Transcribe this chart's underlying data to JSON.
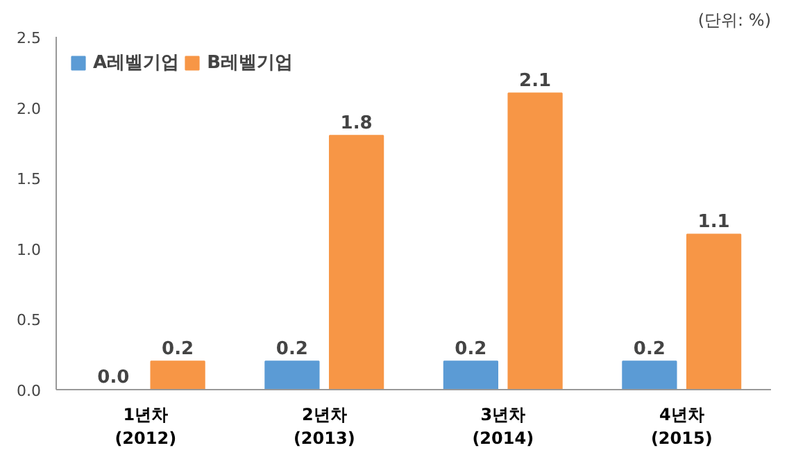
{
  "chart_data": {
    "type": "bar",
    "annotations": [
      "(단위: %)"
    ],
    "categories": [
      "1년차\n(2012)",
      "2년차\n(2013)",
      "3년차\n(2014)",
      "4년차\n(2015)"
    ],
    "series": [
      {
        "name": "A레벨기업",
        "color": "#5b9bd5",
        "values": [
          0.0,
          0.2,
          0.2,
          0.2
        ],
        "value_labels": [
          "0.0",
          "0.2",
          "0.2",
          "0.2"
        ]
      },
      {
        "name": "B레벨기업",
        "color": "#f79646",
        "values": [
          0.2,
          1.8,
          2.1,
          1.1
        ],
        "value_labels": [
          "0.2",
          "1.8",
          "2.1",
          "1.1"
        ]
      }
    ],
    "ylim": [
      0,
      2.5
    ],
    "yticks": [
      {
        "value": 0,
        "label": "0.0"
      },
      {
        "value": 0.5,
        "label": "0.5"
      },
      {
        "value": 1,
        "label": "1.0"
      },
      {
        "value": 1.5,
        "label": "1.5"
      },
      {
        "value": 2,
        "label": "2.0"
      },
      {
        "value": 2.5,
        "label": "2.5"
      }
    ],
    "legend": "top",
    "grid": false
  }
}
